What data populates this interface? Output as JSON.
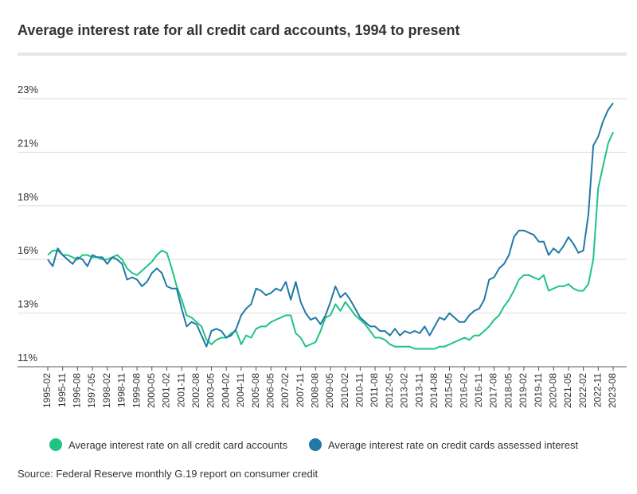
{
  "chart_data": {
    "type": "line",
    "title": "Average interest rate for all credit card accounts, 1994 to present",
    "source": "Source: Federal Reserve monthly G.19 report on consumer credit",
    "categories": [
      "1995-02",
      null,
      null,
      "1995-11",
      null,
      null,
      "1996-08",
      null,
      null,
      "1997-05",
      null,
      null,
      "1998-02",
      null,
      null,
      "1998-11",
      null,
      null,
      "1999-08",
      null,
      null,
      "2000-05",
      null,
      null,
      "2001-02",
      null,
      null,
      "2001-11",
      null,
      null,
      "2002-08",
      null,
      null,
      "2003-05",
      null,
      null,
      "2004-02",
      null,
      null,
      "2004-11",
      null,
      null,
      "2005-08",
      null,
      null,
      "2006-05",
      null,
      null,
      "2007-02",
      null,
      null,
      "2007-11",
      null,
      null,
      "2008-08",
      null,
      null,
      "2009-05",
      null,
      null,
      "2010-02",
      null,
      null,
      "2010-11",
      null,
      null,
      "2011-08",
      null,
      null,
      "2012-05",
      null,
      null,
      "2013-02",
      null,
      null,
      "2013-11",
      null,
      null,
      "2014-08",
      null,
      null,
      "2015-05",
      null,
      null,
      "2016-02",
      null,
      null,
      "2016-11",
      null,
      null,
      "2017-08",
      null,
      null,
      "2018-05",
      null,
      null,
      "2019-02",
      null,
      null,
      "2019-11",
      null,
      null,
      "2020-08",
      null,
      null,
      "2021-05",
      null,
      null,
      "2022-02",
      null,
      null,
      "2022-11",
      null,
      null,
      "2023-08"
    ],
    "series": [
      {
        "name": "Average interest rate on all credit card accounts",
        "color": "#1fc481",
        "values": [
          16.0,
          16.2,
          16.2,
          16.0,
          16.0,
          15.9,
          15.8,
          16.0,
          16.0,
          15.9,
          15.9,
          15.8,
          15.8,
          15.9,
          16.0,
          15.8,
          15.4,
          15.2,
          15.1,
          15.3,
          15.5,
          15.7,
          16.0,
          16.2,
          16.1,
          15.4,
          14.6,
          14.0,
          13.3,
          13.2,
          13.0,
          12.8,
          12.2,
          12.0,
          12.2,
          12.3,
          12.3,
          12.5,
          12.6,
          12.0,
          12.4,
          12.3,
          12.7,
          12.8,
          12.8,
          13.0,
          13.1,
          13.2,
          13.3,
          13.3,
          12.5,
          12.3,
          11.9,
          12.0,
          12.1,
          12.6,
          13.2,
          13.3,
          13.8,
          13.5,
          13.9,
          13.6,
          13.3,
          13.1,
          12.9,
          12.6,
          12.3,
          12.3,
          12.2,
          12.0,
          11.9,
          11.9,
          11.9,
          11.9,
          11.8,
          11.8,
          11.8,
          11.8,
          11.8,
          11.9,
          11.9,
          12.0,
          12.1,
          12.2,
          12.3,
          12.2,
          12.4,
          12.4,
          12.6,
          12.8,
          13.1,
          13.3,
          13.7,
          14.0,
          14.4,
          14.9,
          15.1,
          15.1,
          15.0,
          14.9,
          15.1,
          14.4,
          14.5,
          14.6,
          14.6,
          14.7,
          14.5,
          14.4,
          14.4,
          14.7,
          15.8,
          19.0,
          20.0,
          21.0,
          21.5
        ]
      },
      {
        "name": "Average interest rate on credit cards assessed interest",
        "color": "#2179a6",
        "values": [
          15.8,
          15.5,
          16.3,
          16.0,
          15.8,
          15.6,
          15.9,
          15.8,
          15.5,
          16.0,
          15.9,
          15.9,
          15.6,
          15.9,
          15.8,
          15.6,
          14.9,
          15.0,
          14.9,
          14.6,
          14.8,
          15.2,
          15.4,
          15.2,
          14.6,
          14.5,
          14.5,
          13.6,
          12.8,
          13.0,
          12.9,
          12.4,
          11.9,
          12.6,
          12.7,
          12.6,
          12.3,
          12.4,
          12.7,
          13.3,
          13.6,
          13.8,
          14.5,
          14.4,
          14.2,
          14.3,
          14.5,
          14.4,
          14.8,
          14.0,
          14.8,
          13.9,
          13.4,
          13.1,
          13.2,
          12.9,
          13.3,
          13.9,
          14.6,
          14.1,
          14.3,
          14.0,
          13.6,
          13.2,
          13.0,
          12.8,
          12.8,
          12.6,
          12.6,
          12.4,
          12.7,
          12.4,
          12.6,
          12.5,
          12.6,
          12.5,
          12.8,
          12.4,
          12.8,
          13.2,
          13.1,
          13.4,
          13.2,
          13.0,
          13.0,
          13.3,
          13.5,
          13.6,
          14.0,
          14.9,
          15.0,
          15.4,
          15.6,
          16.0,
          16.8,
          17.1,
          17.1,
          17.0,
          16.9,
          16.6,
          16.6,
          16.0,
          16.3,
          16.1,
          16.4,
          16.8,
          16.5,
          16.1,
          16.2,
          17.8,
          20.9,
          21.3,
          22.0,
          22.5,
          22.8
        ]
      }
    ],
    "ylim": [
      11,
      23
    ],
    "yticks": [
      {
        "value": 11,
        "label": "11%"
      },
      {
        "value": 13.4,
        "label": "13%"
      },
      {
        "value": 15.8,
        "label": "16%"
      },
      {
        "value": 18.2,
        "label": "18%"
      },
      {
        "value": 20.6,
        "label": "21%"
      },
      {
        "value": 23,
        "label": "23%"
      }
    ],
    "grid": true
  }
}
